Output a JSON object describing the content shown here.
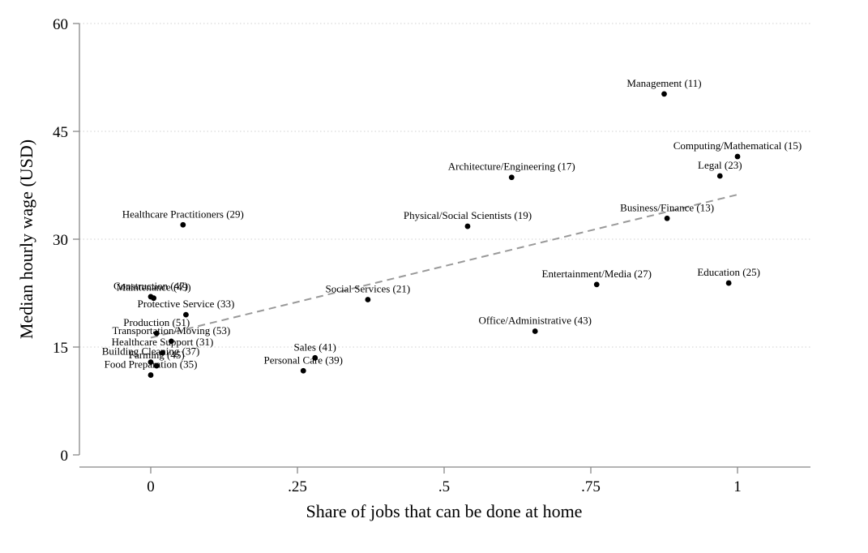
{
  "chart_data": {
    "type": "scatter",
    "title": "",
    "xlabel": "Share of jobs that can be done at home",
    "ylabel": "Median hourly wage (USD)",
    "xlim": [
      -0.12,
      1.12
    ],
    "ylim": [
      0,
      60
    ],
    "x_ticks": [
      0,
      0.25,
      0.5,
      0.75,
      1
    ],
    "x_tick_labels": [
      "0",
      ".25",
      ".5",
      ".75",
      "1"
    ],
    "y_ticks": [
      0,
      15,
      30,
      45,
      60
    ],
    "y_tick_labels": [
      "0",
      "15",
      "30",
      "45",
      "60"
    ],
    "grid": "horizontal dotted",
    "legend": "none",
    "points": [
      {
        "label": "Management (11)",
        "x": 0.875,
        "y": 50.2
      },
      {
        "label": "Computing/Mathematical (15)",
        "x": 1.0,
        "y": 41.5
      },
      {
        "label": "Legal (23)",
        "x": 0.97,
        "y": 38.8
      },
      {
        "label": "Architecture/Engineering (17)",
        "x": 0.615,
        "y": 38.6
      },
      {
        "label": "Business/Finance (13)",
        "x": 0.88,
        "y": 32.9
      },
      {
        "label": "Physical/Social Scientists (19)",
        "x": 0.54,
        "y": 31.8
      },
      {
        "label": "Healthcare Practitioners (29)",
        "x": 0.055,
        "y": 32.0
      },
      {
        "label": "Entertainment/Media (27)",
        "x": 0.76,
        "y": 23.7
      },
      {
        "label": "Education (25)",
        "x": 0.985,
        "y": 23.9
      },
      {
        "label": "Social Services (21)",
        "x": 0.37,
        "y": 21.6
      },
      {
        "label": "Office/Administrative (43)",
        "x": 0.655,
        "y": 17.2
      },
      {
        "label": "Construction (47)",
        "x": 0.0,
        "y": 22.0
      },
      {
        "label": "Maintenance (49)",
        "x": 0.005,
        "y": 21.8
      },
      {
        "label": "Protective Service (33)",
        "x": 0.06,
        "y": 19.5
      },
      {
        "label": "Production (51)",
        "x": 0.01,
        "y": 16.9
      },
      {
        "label": "Transportation/Moving (53)",
        "x": 0.035,
        "y": 15.8
      },
      {
        "label": "Healthcare Support (31)",
        "x": 0.02,
        "y": 14.2
      },
      {
        "label": "Building Cleaning (37)",
        "x": 0.0,
        "y": 12.9
      },
      {
        "label": "Farming (45)",
        "x": 0.01,
        "y": 12.4
      },
      {
        "label": "Food Preparation (35)",
        "x": 0.0,
        "y": 11.1
      },
      {
        "label": "Sales (41)",
        "x": 0.28,
        "y": 13.5
      },
      {
        "label": "Personal Care (39)",
        "x": 0.26,
        "y": 11.7
      }
    ],
    "fit_line": {
      "x": [
        0.0,
        1.0
      ],
      "y": [
        16.3,
        36.2
      ]
    },
    "colors": {
      "points": "#000000",
      "fit_line": "#999999",
      "grid": "#d0d0d0",
      "axis": "#888888"
    }
  }
}
